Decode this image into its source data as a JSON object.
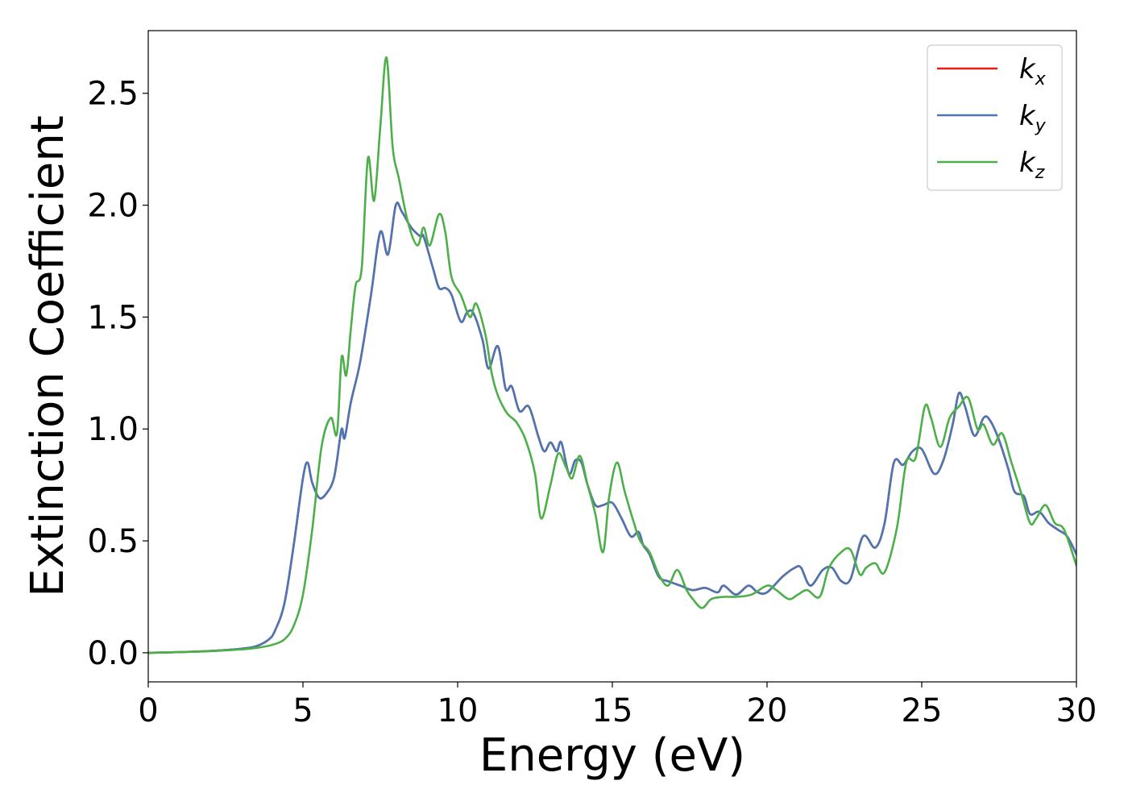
{
  "chart_data": {
    "type": "line",
    "title": "",
    "xlabel": "Energy (eV)",
    "ylabel": "Extinction Coefficient",
    "xlim": [
      0,
      30
    ],
    "ylim": [
      -0.13,
      2.78
    ],
    "xticks": [
      0,
      5,
      10,
      15,
      20,
      25,
      30
    ],
    "xtick_labels": [
      "0",
      "5",
      "10",
      "15",
      "20",
      "25",
      "30"
    ],
    "yticks": [
      0.0,
      0.5,
      1.0,
      1.5,
      2.0,
      2.5
    ],
    "ytick_labels": [
      "0.0",
      "0.5",
      "1.0",
      "1.5",
      "2.0",
      "2.5"
    ],
    "grid": false,
    "legend_position": "top-right",
    "series": [
      {
        "name": "k",
        "subscript": "x",
        "color": "#e41a1c",
        "x": [
          0,
          1,
          2,
          3,
          3.5,
          3.9,
          4.1,
          4.4,
          4.7,
          5.0,
          5.15,
          5.3,
          5.55,
          5.85,
          6.0,
          6.1,
          6.25,
          6.35,
          6.55,
          6.85,
          7.2,
          7.5,
          7.75,
          8.0,
          8.2,
          8.5,
          8.8,
          8.9,
          9.2,
          9.4,
          9.6,
          9.8,
          10.1,
          10.3,
          10.5,
          10.8,
          11.0,
          11.3,
          11.55,
          11.75,
          12.0,
          12.3,
          12.6,
          12.8,
          13.0,
          13.2,
          13.35,
          13.6,
          13.8,
          14.0,
          14.2,
          14.45,
          14.7,
          15.0,
          15.3,
          15.6,
          15.85,
          16.0,
          16.2,
          16.5,
          16.8,
          17.2,
          17.6,
          18.0,
          18.4,
          18.6,
          19.0,
          19.4,
          19.7,
          20.0,
          20.5,
          20.9,
          21.1,
          21.4,
          21.8,
          22.1,
          22.4,
          22.7,
          23.1,
          23.5,
          23.8,
          24.1,
          24.4,
          24.7,
          25.0,
          25.4,
          25.7,
          26.0,
          26.2,
          26.4,
          26.7,
          27.0,
          27.2,
          27.5,
          27.8,
          28.0,
          28.3,
          28.5,
          28.8,
          29.1,
          29.4,
          29.7,
          30.0
        ],
        "y": [
          0.0,
          0.003,
          0.008,
          0.018,
          0.03,
          0.06,
          0.1,
          0.22,
          0.48,
          0.78,
          0.85,
          0.76,
          0.69,
          0.73,
          0.78,
          0.86,
          1.0,
          0.96,
          1.12,
          1.3,
          1.6,
          1.88,
          1.78,
          2.0,
          1.97,
          1.9,
          1.86,
          1.86,
          1.72,
          1.63,
          1.63,
          1.6,
          1.48,
          1.52,
          1.52,
          1.4,
          1.27,
          1.37,
          1.18,
          1.19,
          1.08,
          1.1,
          0.97,
          0.9,
          0.94,
          0.9,
          0.94,
          0.8,
          0.86,
          0.85,
          0.75,
          0.66,
          0.66,
          0.67,
          0.6,
          0.52,
          0.54,
          0.48,
          0.44,
          0.34,
          0.32,
          0.3,
          0.28,
          0.29,
          0.27,
          0.3,
          0.26,
          0.3,
          0.27,
          0.27,
          0.34,
          0.38,
          0.38,
          0.3,
          0.37,
          0.38,
          0.32,
          0.33,
          0.52,
          0.47,
          0.58,
          0.85,
          0.84,
          0.9,
          0.91,
          0.8,
          0.86,
          1.02,
          1.16,
          1.1,
          0.97,
          1.05,
          1.04,
          0.95,
          0.82,
          0.72,
          0.7,
          0.62,
          0.63,
          0.58,
          0.55,
          0.52,
          0.44
        ]
      },
      {
        "name": "k",
        "subscript": "y",
        "color": "#4a77b4",
        "x": [
          0,
          1,
          2,
          3,
          3.5,
          3.9,
          4.1,
          4.4,
          4.7,
          5.0,
          5.15,
          5.3,
          5.55,
          5.85,
          6.0,
          6.1,
          6.25,
          6.35,
          6.55,
          6.85,
          7.2,
          7.5,
          7.75,
          8.0,
          8.2,
          8.5,
          8.8,
          8.9,
          9.2,
          9.4,
          9.6,
          9.8,
          10.1,
          10.3,
          10.5,
          10.8,
          11.0,
          11.3,
          11.55,
          11.75,
          12.0,
          12.3,
          12.6,
          12.8,
          13.0,
          13.2,
          13.35,
          13.6,
          13.8,
          14.0,
          14.2,
          14.45,
          14.7,
          15.0,
          15.3,
          15.6,
          15.85,
          16.0,
          16.2,
          16.5,
          16.8,
          17.2,
          17.6,
          18.0,
          18.4,
          18.6,
          19.0,
          19.4,
          19.7,
          20.0,
          20.5,
          20.9,
          21.1,
          21.4,
          21.8,
          22.1,
          22.4,
          22.7,
          23.1,
          23.5,
          23.8,
          24.1,
          24.4,
          24.7,
          25.0,
          25.4,
          25.7,
          26.0,
          26.2,
          26.4,
          26.7,
          27.0,
          27.2,
          27.5,
          27.8,
          28.0,
          28.3,
          28.5,
          28.8,
          29.1,
          29.4,
          29.7,
          30.0
        ],
        "y": [
          0.0,
          0.003,
          0.008,
          0.018,
          0.03,
          0.06,
          0.1,
          0.22,
          0.48,
          0.78,
          0.85,
          0.76,
          0.69,
          0.73,
          0.78,
          0.86,
          1.0,
          0.96,
          1.12,
          1.3,
          1.6,
          1.88,
          1.78,
          2.0,
          1.97,
          1.9,
          1.86,
          1.86,
          1.72,
          1.63,
          1.63,
          1.6,
          1.48,
          1.52,
          1.52,
          1.4,
          1.27,
          1.37,
          1.18,
          1.19,
          1.08,
          1.1,
          0.97,
          0.9,
          0.94,
          0.9,
          0.94,
          0.8,
          0.86,
          0.85,
          0.75,
          0.66,
          0.66,
          0.67,
          0.6,
          0.52,
          0.54,
          0.48,
          0.44,
          0.34,
          0.32,
          0.3,
          0.28,
          0.29,
          0.27,
          0.3,
          0.26,
          0.3,
          0.27,
          0.27,
          0.34,
          0.38,
          0.38,
          0.3,
          0.37,
          0.38,
          0.32,
          0.33,
          0.52,
          0.47,
          0.58,
          0.85,
          0.84,
          0.9,
          0.91,
          0.8,
          0.86,
          1.02,
          1.16,
          1.1,
          0.97,
          1.05,
          1.04,
          0.95,
          0.82,
          0.72,
          0.7,
          0.62,
          0.63,
          0.58,
          0.55,
          0.52,
          0.44
        ]
      },
      {
        "name": "k",
        "subscript": "z",
        "color": "#4daf4a",
        "x": [
          0,
          1,
          2,
          3,
          3.5,
          4.0,
          4.4,
          4.7,
          5.0,
          5.3,
          5.6,
          5.9,
          6.1,
          6.25,
          6.4,
          6.55,
          6.7,
          6.9,
          7.1,
          7.3,
          7.5,
          7.7,
          7.9,
          8.1,
          8.4,
          8.7,
          8.9,
          9.1,
          9.4,
          9.6,
          9.8,
          10.1,
          10.4,
          10.6,
          10.9,
          11.1,
          11.3,
          11.6,
          11.9,
          12.2,
          12.5,
          12.7,
          13.0,
          13.25,
          13.5,
          13.7,
          13.95,
          14.2,
          14.45,
          14.7,
          14.9,
          15.15,
          15.4,
          15.7,
          15.9,
          16.2,
          16.5,
          16.8,
          17.1,
          17.4,
          17.6,
          17.9,
          18.2,
          18.6,
          19.0,
          19.5,
          20.0,
          20.3,
          20.7,
          21.0,
          21.3,
          21.7,
          22.0,
          22.4,
          22.7,
          23.0,
          23.2,
          23.5,
          23.8,
          24.2,
          24.5,
          24.8,
          25.1,
          25.3,
          25.6,
          25.9,
          26.2,
          26.5,
          26.8,
          27.0,
          27.3,
          27.6,
          27.9,
          28.2,
          28.5,
          28.7,
          29.0,
          29.3,
          29.6,
          30.0
        ],
        "y": [
          0.0,
          0.003,
          0.007,
          0.015,
          0.022,
          0.035,
          0.06,
          0.12,
          0.26,
          0.55,
          0.92,
          1.05,
          0.98,
          1.32,
          1.24,
          1.45,
          1.64,
          1.72,
          2.21,
          2.02,
          2.35,
          2.66,
          2.26,
          2.12,
          1.92,
          1.82,
          1.9,
          1.82,
          1.96,
          1.88,
          1.68,
          1.6,
          1.5,
          1.56,
          1.42,
          1.25,
          1.15,
          1.07,
          1.03,
          0.95,
          0.8,
          0.6,
          0.75,
          0.89,
          0.83,
          0.78,
          0.88,
          0.75,
          0.62,
          0.45,
          0.7,
          0.85,
          0.72,
          0.58,
          0.5,
          0.45,
          0.35,
          0.3,
          0.37,
          0.28,
          0.24,
          0.2,
          0.24,
          0.25,
          0.25,
          0.26,
          0.3,
          0.28,
          0.24,
          0.26,
          0.28,
          0.25,
          0.38,
          0.45,
          0.46,
          0.35,
          0.38,
          0.4,
          0.36,
          0.56,
          0.85,
          0.87,
          1.1,
          1.05,
          0.92,
          1.05,
          1.1,
          1.14,
          1.0,
          1.02,
          0.93,
          0.98,
          0.85,
          0.72,
          0.58,
          0.6,
          0.66,
          0.58,
          0.55,
          0.39
        ]
      }
    ]
  }
}
